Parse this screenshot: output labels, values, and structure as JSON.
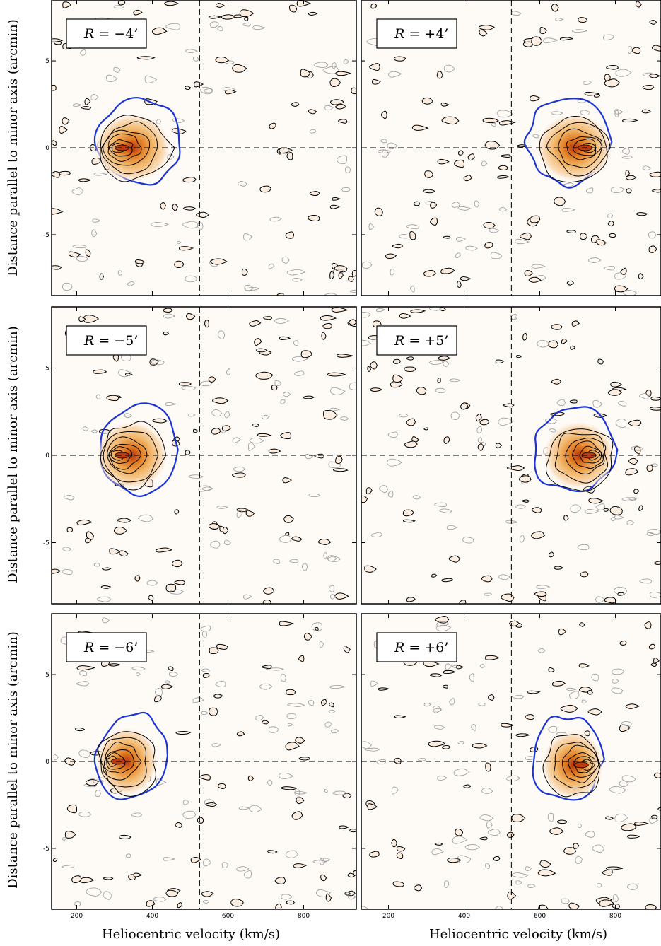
{
  "chart_data": {
    "type": "contour",
    "xlabel": "Heliocentric velocity (km/s)",
    "ylabel": "Distance parallel to minor axis (arcmin)",
    "xlim": [
      100,
      900
    ],
    "ylim": [
      -8.5,
      8.5
    ],
    "xticks": [
      200,
      400,
      600,
      800
    ],
    "yticks": [
      -5,
      0,
      5
    ],
    "systemic_velocity": 525,
    "colors": {
      "outer_contour": "#1a33d6",
      "contour": "#000000",
      "noise_contour": "#9a9a9a",
      "peak": "#c03a10",
      "mid": "#e8902a",
      "low": "#f6d3a8"
    },
    "panels": [
      {
        "label_prefix": "R =",
        "label_value": "−4’",
        "peak": {
          "x": 320,
          "y": 0.0
        },
        "spread_v": 80,
        "side": "approaching"
      },
      {
        "label_prefix": "R =",
        "label_value": "+4’",
        "peak": {
          "x": 720,
          "y": 0.0
        },
        "spread_v": 80,
        "side": "receding"
      },
      {
        "label_prefix": "R =",
        "label_value": "−5’",
        "peak": {
          "x": 320,
          "y": 0.0
        },
        "spread_v": 75,
        "side": "approaching"
      },
      {
        "label_prefix": "R =",
        "label_value": "+5’",
        "peak": {
          "x": 730,
          "y": 0.0
        },
        "spread_v": 75,
        "side": "receding"
      },
      {
        "label_prefix": "R =",
        "label_value": "−6’",
        "peak": {
          "x": 310,
          "y": 0.0
        },
        "spread_v": 65,
        "side": "approaching"
      },
      {
        "label_prefix": "R =",
        "label_value": "+6’",
        "peak": {
          "x": 710,
          "y": -0.2
        },
        "spread_v": 65,
        "side": "receding"
      }
    ]
  }
}
